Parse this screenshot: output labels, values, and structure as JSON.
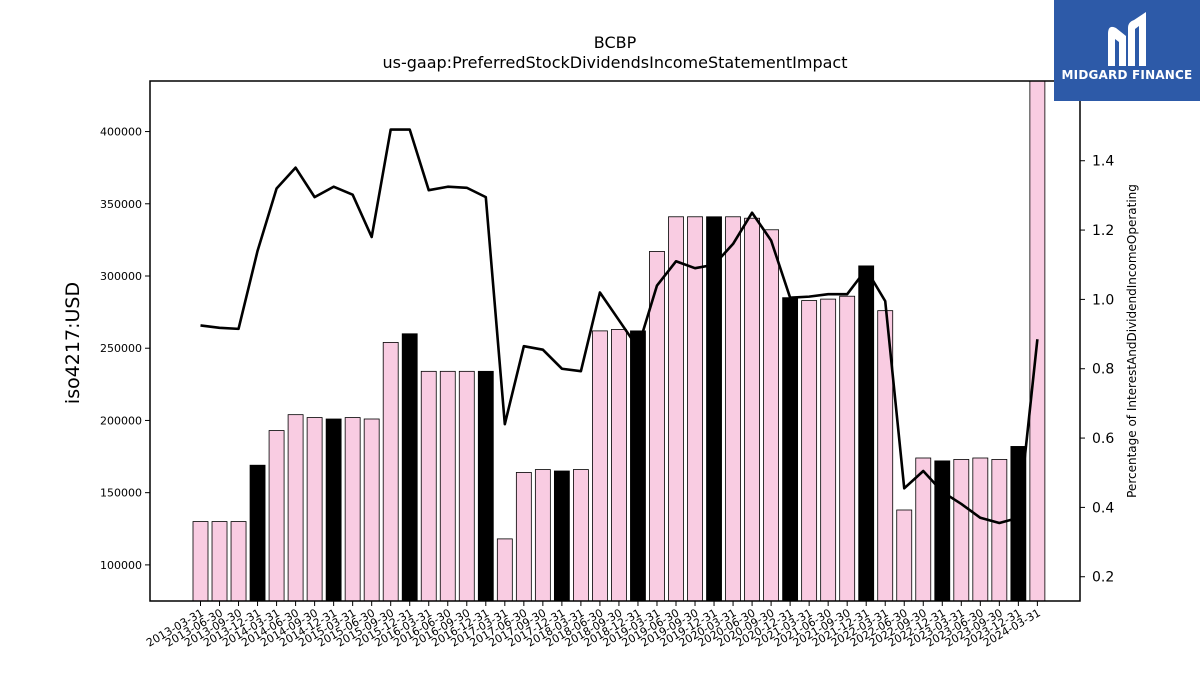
{
  "brand": {
    "name": "MIDGARD FINANCE",
    "logo_icon": "midgard-m-logo-icon",
    "color": "#2d5aa8"
  },
  "chart_data": {
    "type": "bar",
    "title": "BCBP",
    "subtitle": "us-gaap:PreferredStockDividendsIncomeStatementImpact",
    "ylabel": "iso4217:USD",
    "y2label": "Percentage of InterestAndDividendIncomeOperating",
    "ylim": [
      75000,
      435000
    ],
    "y2lim": [
      0.13,
      1.63
    ],
    "yticks": [
      100000,
      150000,
      200000,
      250000,
      300000,
      350000,
      400000
    ],
    "y2ticks": [
      0.2,
      0.4,
      0.6,
      0.8,
      1.0,
      1.2,
      1.4
    ],
    "colors": {
      "quarter": "#f9cce2",
      "year_end": "#000000",
      "line": "#000000"
    },
    "categories": [
      "2013-03-31",
      "2013-06-30",
      "2013-09-30",
      "2013-12-31",
      "2014-03-31",
      "2014-06-30",
      "2014-09-30",
      "2014-12-31",
      "2015-03-31",
      "2015-06-30",
      "2015-09-30",
      "2015-12-31",
      "2016-03-31",
      "2016-06-30",
      "2016-09-30",
      "2016-12-31",
      "2017-03-31",
      "2017-06-30",
      "2017-09-30",
      "2017-12-31",
      "2018-03-31",
      "2018-06-30",
      "2018-09-30",
      "2018-12-31",
      "2019-03-31",
      "2019-06-30",
      "2019-09-30",
      "2019-12-31",
      "2020-03-31",
      "2020-06-30",
      "2020-09-30",
      "2020-12-31",
      "2021-03-31",
      "2021-06-30",
      "2021-09-30",
      "2021-12-31",
      "2022-03-31",
      "2022-06-30",
      "2022-09-30",
      "2022-12-31",
      "2023-03-31",
      "2023-06-30",
      "2023-09-30",
      "2023-12-31",
      "2024-03-31"
    ],
    "series": [
      {
        "kind": "bar",
        "values": [
          130000,
          130000,
          130000,
          169000,
          193000,
          204000,
          202000,
          201000,
          202000,
          201000,
          254000,
          260000,
          234000,
          234000,
          234000,
          234000,
          118000,
          164000,
          166000,
          165000,
          166000,
          262000,
          263000,
          262000,
          317000,
          341000,
          341000,
          341000,
          341000,
          340000,
          332000,
          285000,
          283000,
          284000,
          286000,
          307000,
          276000,
          138000,
          174000,
          172000,
          173000,
          174000,
          173000,
          182000,
          435000
        ],
        "year_end": [
          false,
          false,
          false,
          true,
          false,
          false,
          false,
          true,
          false,
          false,
          false,
          true,
          false,
          false,
          false,
          true,
          false,
          false,
          false,
          true,
          false,
          false,
          false,
          true,
          false,
          false,
          false,
          true,
          false,
          false,
          false,
          true,
          false,
          false,
          false,
          true,
          false,
          false,
          false,
          true,
          false,
          false,
          false,
          true,
          false
        ]
      },
      {
        "kind": "line",
        "axis": "right",
        "values": [
          0.925,
          0.918,
          0.915,
          1.14,
          1.32,
          1.38,
          1.295,
          1.325,
          1.302,
          1.18,
          1.49,
          1.49,
          1.315,
          1.325,
          1.322,
          1.295,
          0.64,
          0.865,
          0.855,
          0.8,
          0.793,
          1.02,
          0.94,
          0.86,
          1.04,
          1.11,
          1.09,
          1.1,
          1.16,
          1.25,
          1.17,
          1.005,
          1.008,
          1.015,
          1.015,
          1.087,
          0.995,
          0.455,
          0.505,
          0.445,
          0.41,
          0.37,
          0.355,
          0.37,
          0.885
        ]
      }
    ]
  }
}
